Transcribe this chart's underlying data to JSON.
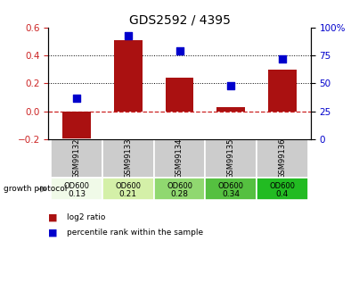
{
  "title": "GDS2592 / 4395",
  "samples": [
    "GSM99132",
    "GSM99133",
    "GSM99134",
    "GSM99135",
    "GSM99136"
  ],
  "log2_ratio": [
    -0.22,
    0.51,
    0.24,
    0.03,
    0.3
  ],
  "percentile_rank": [
    37,
    93,
    79,
    48,
    72
  ],
  "ylim_left": [
    -0.2,
    0.6
  ],
  "ylim_right": [
    0,
    100
  ],
  "yticks_left": [
    -0.2,
    0.0,
    0.2,
    0.4,
    0.6
  ],
  "yticks_right": [
    0,
    25,
    50,
    75,
    100
  ],
  "ytick_labels_right": [
    "0",
    "25",
    "50",
    "75",
    "100%"
  ],
  "bar_color": "#aa1111",
  "dot_color": "#0000cc",
  "zero_line_color": "#cc2222",
  "grid_color": "#000000",
  "od600_values": [
    "0.13",
    "0.21",
    "0.28",
    "0.34",
    "0.4"
  ],
  "od600_colors": [
    "#f0fae8",
    "#d4f0a8",
    "#90d870",
    "#55c040",
    "#22bb22"
  ],
  "growth_protocol_label": "growth protocol",
  "legend_log2": "log2 ratio",
  "legend_percentile": "percentile rank within the sample",
  "bar_width": 0.55,
  "fig_width": 4.03,
  "fig_height": 3.45
}
